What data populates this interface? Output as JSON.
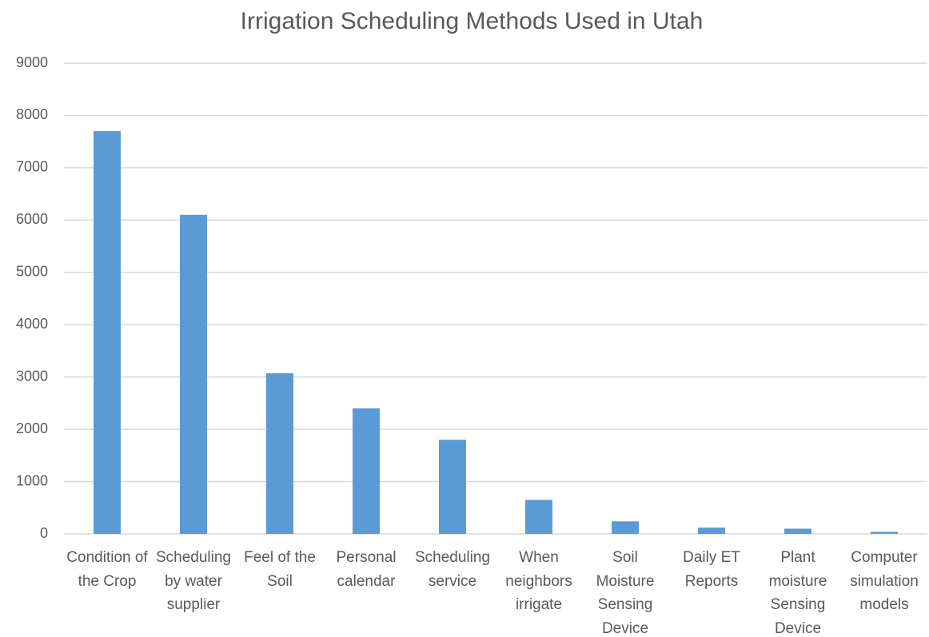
{
  "chart_data": {
    "type": "bar",
    "title": "Irrigation Scheduling Methods Used in Utah",
    "categories": [
      "Condition of the Crop",
      "Scheduling by water supplier",
      "Feel of the Soil",
      "Personal calendar",
      "Scheduling service",
      "When neighbors irrigate",
      "Soil Moisture Sensing Device",
      "Daily ET Reports",
      "Plant moisture Sensing Device",
      "Computer simulation models"
    ],
    "values": [
      7700,
      6100,
      3070,
      2400,
      1800,
      650,
      240,
      120,
      100,
      40
    ],
    "color": "#5b9bd5",
    "ylim": [
      0,
      9000
    ],
    "yticks": [
      0,
      1000,
      2000,
      3000,
      4000,
      5000,
      6000,
      7000,
      8000,
      9000
    ],
    "grid": true
  }
}
